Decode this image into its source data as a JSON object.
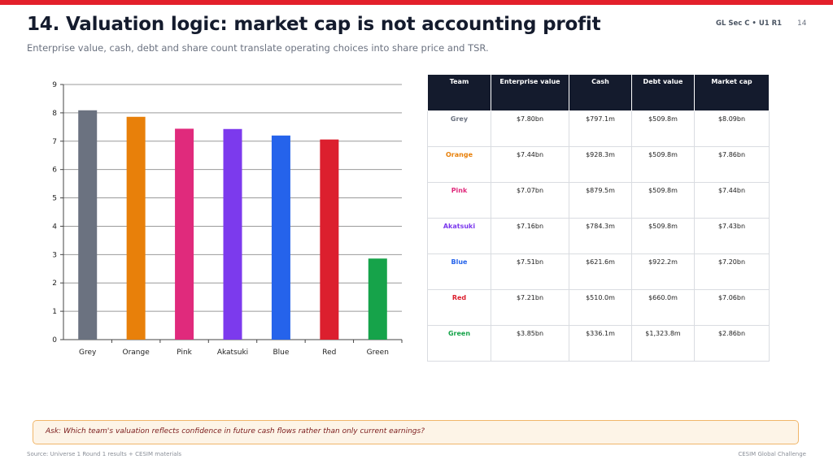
{
  "header": {
    "title": "14. Valuation logic: market cap is not accounting profit",
    "subtitle": "Enterprise value, cash, debt and share count translate operating choices into share price and TSR.",
    "session_tag": "GL Sec C • U1 R1",
    "page_number": "14"
  },
  "chart_data": {
    "type": "bar",
    "categories": [
      "Grey",
      "Orange",
      "Pink",
      "Akatsuki",
      "Blue",
      "Red",
      "Green"
    ],
    "values": [
      8.09,
      7.86,
      7.44,
      7.43,
      7.2,
      7.06,
      2.86
    ],
    "colors": [
      "#6b7280",
      "#e8800a",
      "#e02a7c",
      "#7c3aed",
      "#2563eb",
      "#dc1f2e",
      "#16a34a"
    ],
    "ylim": [
      0,
      9
    ],
    "yticks": [
      "0",
      "1",
      "2",
      "3",
      "4",
      "5",
      "6",
      "7",
      "8",
      "9"
    ],
    "grid": true,
    "legend": "none",
    "title": "",
    "xlabel": "",
    "ylabel": ""
  },
  "table": {
    "headers": [
      "Team",
      "Enterprise value",
      "Cash",
      "Debt value",
      "Market cap"
    ],
    "rows": [
      {
        "team": "Grey",
        "color": "#6b7280",
        "enterprise_value": "$7.80bn",
        "cash": "$797.1m",
        "debt_value": "$509.8m",
        "market_cap": "$8.09bn"
      },
      {
        "team": "Orange",
        "color": "#e8800a",
        "enterprise_value": "$7.44bn",
        "cash": "$928.3m",
        "debt_value": "$509.8m",
        "market_cap": "$7.86bn"
      },
      {
        "team": "Pink",
        "color": "#e02a7c",
        "enterprise_value": "$7.07bn",
        "cash": "$879.5m",
        "debt_value": "$509.8m",
        "market_cap": "$7.44bn"
      },
      {
        "team": "Akatsuki",
        "color": "#7c3aed",
        "enterprise_value": "$7.16bn",
        "cash": "$784.3m",
        "debt_value": "$509.8m",
        "market_cap": "$7.43bn"
      },
      {
        "team": "Blue",
        "color": "#2563eb",
        "enterprise_value": "$7.51bn",
        "cash": "$621.6m",
        "debt_value": "$922.2m",
        "market_cap": "$7.20bn"
      },
      {
        "team": "Red",
        "color": "#dc1f2e",
        "enterprise_value": "$7.21bn",
        "cash": "$510.0m",
        "debt_value": "$660.0m",
        "market_cap": "$7.06bn"
      },
      {
        "team": "Green",
        "color": "#16a34a",
        "enterprise_value": "$3.85bn",
        "cash": "$336.1m",
        "debt_value": "$1,323.8m",
        "market_cap": "$2.86bn"
      }
    ]
  },
  "callout": {
    "text": "Ask: Which team's valuation reflects confidence in future cash flows rather than only current earnings?"
  },
  "footer": {
    "source": "Source: Universe 1 Round 1 results + CESIM materials",
    "brand": "CESIM Global Challenge"
  },
  "colors": {
    "accent": "#e3202b",
    "header_bg": "#141b2d"
  }
}
